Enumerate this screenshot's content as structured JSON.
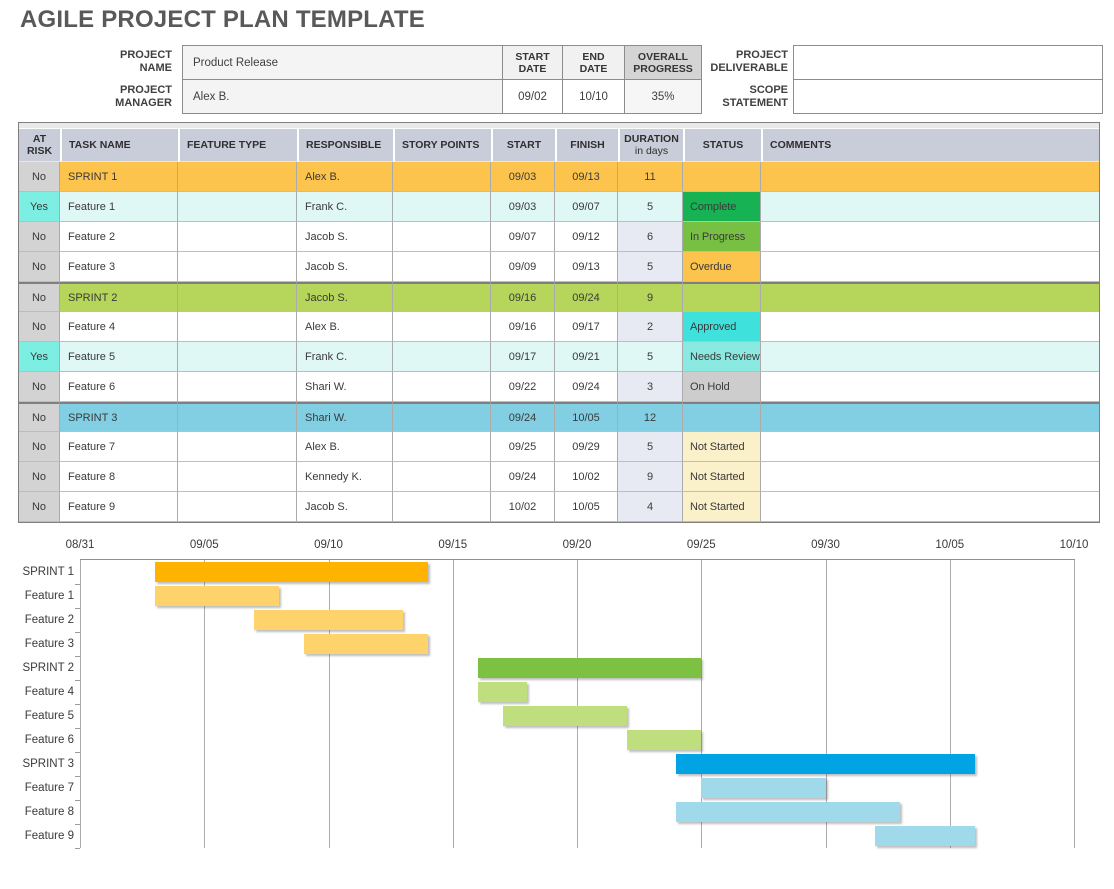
{
  "title": "AGILE PROJECT PLAN TEMPLATE",
  "form": {
    "project_name_label": "PROJECT NAME",
    "project_name_value": "Product Release",
    "project_manager_label": "PROJECT MANAGER",
    "project_manager_value": "Alex B.",
    "start_date_label": "START DATE",
    "start_date_value": "09/02",
    "end_date_label": "END DATE",
    "end_date_value": "10/10",
    "overall_progress_label": "OVERALL PROGRESS",
    "overall_progress_value": "35%",
    "project_deliverable_label": "PROJECT DELIVERABLE",
    "project_deliverable_value": "",
    "scope_statement_label": "SCOPE STATEMENT",
    "scope_statement_value": ""
  },
  "table": {
    "columns": [
      {
        "label": "AT RISK",
        "align": "hc"
      },
      {
        "label": "TASK NAME",
        "align": "hl"
      },
      {
        "label": "FEATURE TYPE",
        "align": "hl"
      },
      {
        "label": "RESPONSIBLE",
        "align": "hl"
      },
      {
        "label": "STORY POINTS",
        "align": "hl"
      },
      {
        "label": "START",
        "align": "hc"
      },
      {
        "label": "FINISH",
        "align": "hc"
      },
      {
        "label": "DURATION",
        "sub": "in days",
        "align": "hc"
      },
      {
        "label": "STATUS",
        "align": "hc"
      },
      {
        "label": "COMMENTS",
        "align": "hl"
      }
    ],
    "rows": [
      {
        "at_risk": "No",
        "task": "SPRINT 1",
        "feature_type": "",
        "responsible": "Alex B.",
        "story_points": "",
        "start": "09/03",
        "finish": "09/13",
        "duration": "11",
        "status": "",
        "comments": "",
        "kind": "sprint",
        "group": 1
      },
      {
        "at_risk": "Yes",
        "task": "Feature 1",
        "feature_type": "",
        "responsible": "Frank C.",
        "story_points": "",
        "start": "09/03",
        "finish": "09/07",
        "duration": "5",
        "status": "Complete",
        "comments": "",
        "kind": "feature",
        "group": 1
      },
      {
        "at_risk": "No",
        "task": "Feature 2",
        "feature_type": "",
        "responsible": "Jacob S.",
        "story_points": "",
        "start": "09/07",
        "finish": "09/12",
        "duration": "6",
        "status": "In Progress",
        "comments": "",
        "kind": "feature",
        "group": 1
      },
      {
        "at_risk": "No",
        "task": "Feature 3",
        "feature_type": "",
        "responsible": "Jacob S.",
        "story_points": "",
        "start": "09/09",
        "finish": "09/13",
        "duration": "5",
        "status": "Overdue",
        "comments": "",
        "kind": "feature",
        "group": 1
      },
      {
        "at_risk": "No",
        "task": "SPRINT 2",
        "feature_type": "",
        "responsible": "Jacob S.",
        "story_points": "",
        "start": "09/16",
        "finish": "09/24",
        "duration": "9",
        "status": "",
        "comments": "",
        "kind": "sprint",
        "group": 2
      },
      {
        "at_risk": "No",
        "task": "Feature 4",
        "feature_type": "",
        "responsible": "Alex B.",
        "story_points": "",
        "start": "09/16",
        "finish": "09/17",
        "duration": "2",
        "status": "Approved",
        "comments": "",
        "kind": "feature",
        "group": 2
      },
      {
        "at_risk": "Yes",
        "task": "Feature 5",
        "feature_type": "",
        "responsible": "Frank C.",
        "story_points": "",
        "start": "09/17",
        "finish": "09/21",
        "duration": "5",
        "status": "Needs Review",
        "comments": "",
        "kind": "feature",
        "group": 2
      },
      {
        "at_risk": "No",
        "task": "Feature 6",
        "feature_type": "",
        "responsible": "Shari W.",
        "story_points": "",
        "start": "09/22",
        "finish": "09/24",
        "duration": "3",
        "status": "On Hold",
        "comments": "",
        "kind": "feature",
        "group": 2
      },
      {
        "at_risk": "No",
        "task": "SPRINT 3",
        "feature_type": "",
        "responsible": "Shari W.",
        "story_points": "",
        "start": "09/24",
        "finish": "10/05",
        "duration": "12",
        "status": "",
        "comments": "",
        "kind": "sprint",
        "group": 3
      },
      {
        "at_risk": "No",
        "task": "Feature 7",
        "feature_type": "",
        "responsible": "Alex B.",
        "story_points": "",
        "start": "09/25",
        "finish": "09/29",
        "duration": "5",
        "status": "Not Started",
        "comments": "",
        "kind": "feature",
        "group": 3
      },
      {
        "at_risk": "No",
        "task": "Feature 8",
        "feature_type": "",
        "responsible": "Kennedy K.",
        "story_points": "",
        "start": "09/24",
        "finish": "10/02",
        "duration": "9",
        "status": "Not Started",
        "comments": "",
        "kind": "feature",
        "group": 3
      },
      {
        "at_risk": "No",
        "task": "Feature 9",
        "feature_type": "",
        "responsible": "Jacob S.",
        "story_points": "",
        "start": "10/02",
        "finish": "10/05",
        "duration": "4",
        "status": "Not Started",
        "comments": "",
        "kind": "feature",
        "group": 3
      }
    ]
  },
  "colors": {
    "header_bg": "#C9CDD9",
    "at_risk_no_cell": "#D3D3D3",
    "at_risk_yes_cell": "#7DEEE2",
    "at_risk_row": "#DFF7F5",
    "duration_cell": "#E8EAF3",
    "row_sprint": {
      "1": "#FCC34D",
      "2": "#B5D65A",
      "3": "#82CEE2"
    },
    "status": {
      "Complete": "#17B253",
      "In Progress": "#78C044",
      "Overdue": "#FCC34D",
      "Approved": "#3FE1DC",
      "Needs Review": "#8AEAE1",
      "On Hold": "#CDCDCD",
      "Not Started": "#FAF0C9"
    }
  },
  "chart_data": {
    "type": "gantt",
    "x_ticks": [
      "08/31",
      "09/05",
      "09/10",
      "09/15",
      "09/20",
      "09/25",
      "09/30",
      "10/05",
      "10/10"
    ],
    "axis_start": "08/31",
    "axis_end": "10/10",
    "tasks": [
      {
        "name": "SPRINT 1",
        "start": "09/03",
        "finish": "09/13",
        "kind": "sprint",
        "group": 1
      },
      {
        "name": "Feature 1",
        "start": "09/03",
        "finish": "09/07",
        "kind": "feature",
        "group": 1
      },
      {
        "name": "Feature 2",
        "start": "09/07",
        "finish": "09/12",
        "kind": "feature",
        "group": 1
      },
      {
        "name": "Feature 3",
        "start": "09/09",
        "finish": "09/13",
        "kind": "feature",
        "group": 1
      },
      {
        "name": "SPRINT 2",
        "start": "09/16",
        "finish": "09/24",
        "kind": "sprint",
        "group": 2
      },
      {
        "name": "Feature 4",
        "start": "09/16",
        "finish": "09/17",
        "kind": "feature",
        "group": 2
      },
      {
        "name": "Feature 5",
        "start": "09/17",
        "finish": "09/21",
        "kind": "feature",
        "group": 2
      },
      {
        "name": "Feature 6",
        "start": "09/22",
        "finish": "09/24",
        "kind": "feature",
        "group": 2
      },
      {
        "name": "SPRINT 3",
        "start": "09/24",
        "finish": "10/05",
        "kind": "sprint",
        "group": 3
      },
      {
        "name": "Feature 7",
        "start": "09/25",
        "finish": "09/29",
        "kind": "feature",
        "group": 3
      },
      {
        "name": "Feature 8",
        "start": "09/24",
        "finish": "10/02",
        "kind": "feature",
        "group": 3
      },
      {
        "name": "Feature 9",
        "start": "10/02",
        "finish": "10/05",
        "kind": "feature",
        "group": 3
      }
    ],
    "bar_colors": {
      "sprint_1": "#FEB301",
      "feature_1": "#FFD36B",
      "sprint_2": "#7CC142",
      "feature_2": "#BFDF7E",
      "sprint_3": "#00A4E4",
      "feature_3": "#A0D9E9"
    }
  }
}
